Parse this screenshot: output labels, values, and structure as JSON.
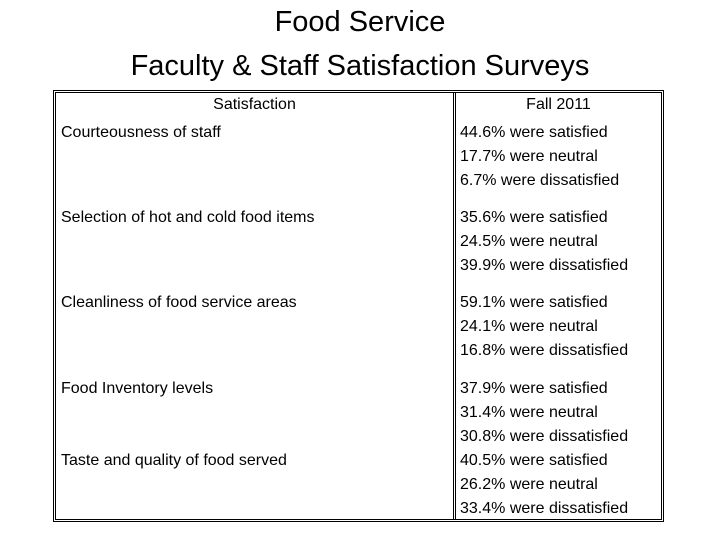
{
  "header": {
    "title_lines": [
      "Food Service",
      "Faculty & Staff Satisfaction Surveys"
    ]
  },
  "table": {
    "columns": [
      "Satisfaction",
      "Fall 2011"
    ],
    "rows": [
      {
        "label": "Courteousness of staff",
        "results": [
          "44.6% were satisfied",
          "17.7% were neutral",
          "6.7% were dissatisfied"
        ]
      },
      {
        "label": "Selection of hot and cold food items",
        "results": [
          "35.6% were satisfied",
          "24.5% were neutral",
          "39.9% were dissatisfied"
        ]
      },
      {
        "label": "Cleanliness of food service areas",
        "results": [
          "59.1% were satisfied",
          "24.1% were neutral",
          "16.8% were dissatisfied"
        ]
      },
      {
        "label": "Food Inventory levels",
        "results": [
          "37.9% were satisfied",
          "31.4% were neutral",
          "30.8% were dissatisfied"
        ]
      },
      {
        "label": "Taste and quality of food served",
        "results": [
          "40.5% were satisfied",
          "26.2% were neutral",
          "33.4% were dissatisfied"
        ]
      }
    ]
  }
}
